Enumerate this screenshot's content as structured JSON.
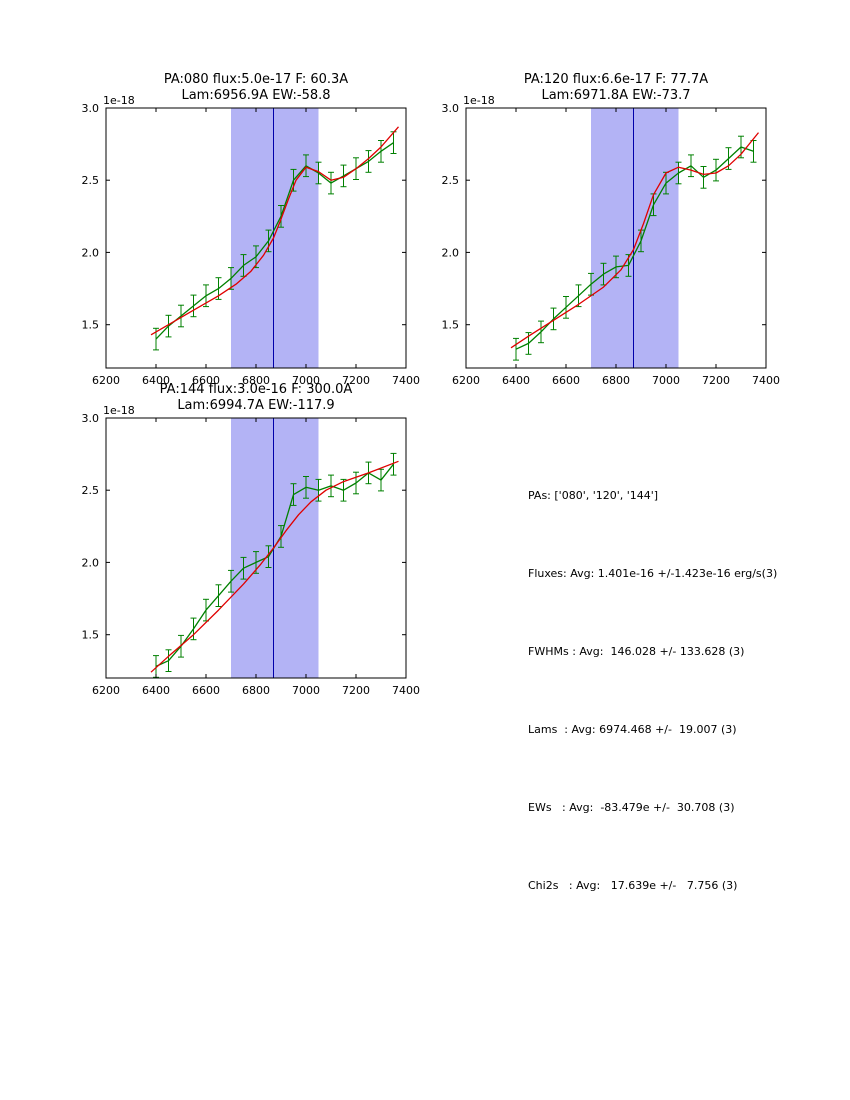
{
  "figure": {
    "background": "#ffffff",
    "band_color": "#b3b3f5",
    "vline_color": "#0000aa",
    "axis_color": "#000000"
  },
  "stats_panel": {
    "lines": [
      "PAs: ['080', '120', '144']",
      "Fluxes: Avg: 1.401e-16 +/-1.423e-16 erg/s(3)",
      "FWHMs : Avg:  146.028 +/- 133.628 (3)",
      "Lams  : Avg: 6974.468 +/-  19.007 (3)",
      "EWs   : Avg:  -83.479e +/-  30.708 (3)",
      "Chi2s   : Avg:   17.639e +/-   7.756 (3)"
    ]
  },
  "chart_data": [
    {
      "type": "line",
      "title_line1": "PA:080 flux:5.0e-17 F: 60.3A",
      "title_line2": "Lam:6956.9A EW:-58.8",
      "offset_label": "1e-18",
      "xlim": [
        6200,
        7400
      ],
      "ylim": [
        1.2,
        3.0
      ],
      "xticks": [
        6200,
        6400,
        6600,
        6800,
        7000,
        7200,
        7400
      ],
      "yticks": [
        "1.5",
        "2.0",
        "2.5",
        "3.0"
      ],
      "band": {
        "x0": 6700,
        "x1": 7050
      },
      "vline_x": 6870,
      "series": [
        {
          "name": "spectrum",
          "color": "#008000",
          "yerr": 0.075,
          "x": [
            6400,
            6450,
            6500,
            6550,
            6600,
            6650,
            6700,
            6750,
            6800,
            6850,
            6900,
            6950,
            7000,
            7050,
            7100,
            7150,
            7200,
            7250,
            7300,
            7350
          ],
          "y": [
            1.4,
            1.49,
            1.56,
            1.63,
            1.7,
            1.75,
            1.82,
            1.91,
            1.97,
            2.08,
            2.25,
            2.5,
            2.6,
            2.55,
            2.48,
            2.53,
            2.58,
            2.63,
            2.7,
            2.76
          ]
        },
        {
          "name": "fit",
          "color": "#e00000",
          "x": [
            6380,
            6450,
            6550,
            6650,
            6720,
            6780,
            6830,
            6870,
            6900,
            6930,
            6960,
            7000,
            7050,
            7100,
            7150,
            7200,
            7250,
            7300,
            7370
          ],
          "y": [
            1.43,
            1.5,
            1.6,
            1.7,
            1.78,
            1.87,
            1.98,
            2.1,
            2.23,
            2.37,
            2.5,
            2.59,
            2.56,
            2.5,
            2.52,
            2.58,
            2.65,
            2.73,
            2.87
          ]
        }
      ]
    },
    {
      "type": "line",
      "title_line1": "PA:120 flux:6.6e-17 F: 77.7A",
      "title_line2": "Lam:6971.8A EW:-73.7",
      "offset_label": "1e-18",
      "xlim": [
        6200,
        7400
      ],
      "ylim": [
        1.2,
        3.0
      ],
      "xticks": [
        6200,
        6400,
        6600,
        6800,
        7000,
        7200,
        7400
      ],
      "yticks": [
        "1.5",
        "2.0",
        "2.5",
        "3.0"
      ],
      "band": {
        "x0": 6700,
        "x1": 7050
      },
      "vline_x": 6870,
      "series": [
        {
          "name": "spectrum",
          "color": "#008000",
          "yerr": 0.075,
          "x": [
            6400,
            6450,
            6500,
            6550,
            6600,
            6650,
            6700,
            6750,
            6800,
            6850,
            6900,
            6950,
            7000,
            7050,
            7100,
            7150,
            7200,
            7250,
            7300,
            7350
          ],
          "y": [
            1.33,
            1.37,
            1.45,
            1.54,
            1.62,
            1.7,
            1.78,
            1.85,
            1.9,
            1.91,
            2.08,
            2.33,
            2.48,
            2.55,
            2.6,
            2.52,
            2.57,
            2.65,
            2.73,
            2.7
          ]
        },
        {
          "name": "fit",
          "color": "#e00000",
          "x": [
            6380,
            6450,
            6550,
            6650,
            6750,
            6820,
            6870,
            6910,
            6950,
            7000,
            7050,
            7100,
            7150,
            7200,
            7250,
            7300,
            7370
          ],
          "y": [
            1.34,
            1.42,
            1.53,
            1.64,
            1.76,
            1.88,
            2.02,
            2.2,
            2.4,
            2.55,
            2.59,
            2.57,
            2.54,
            2.55,
            2.6,
            2.68,
            2.83
          ]
        }
      ]
    },
    {
      "type": "line",
      "title_line1": "PA:144 flux:3.0e-16 F: 300.0A",
      "title_line2": "Lam:6994.7A EW:-117.9",
      "offset_label": "1e-18",
      "xlim": [
        6200,
        7400
      ],
      "ylim": [
        1.2,
        3.0
      ],
      "xticks": [
        6200,
        6400,
        6600,
        6800,
        7000,
        7200,
        7400
      ],
      "yticks": [
        "1.5",
        "2.0",
        "2.5",
        "3.0"
      ],
      "band": {
        "x0": 6700,
        "x1": 7050
      },
      "vline_x": 6870,
      "series": [
        {
          "name": "spectrum",
          "color": "#008000",
          "yerr": 0.075,
          "x": [
            6400,
            6450,
            6500,
            6550,
            6600,
            6650,
            6700,
            6750,
            6800,
            6850,
            6900,
            6950,
            7000,
            7050,
            7100,
            7150,
            7200,
            7250,
            7300,
            7350
          ],
          "y": [
            1.28,
            1.32,
            1.42,
            1.54,
            1.67,
            1.77,
            1.87,
            1.96,
            2.0,
            2.04,
            2.18,
            2.47,
            2.52,
            2.5,
            2.53,
            2.5,
            2.55,
            2.62,
            2.57,
            2.68
          ]
        },
        {
          "name": "fit",
          "color": "#e00000",
          "x": [
            6380,
            6450,
            6550,
            6650,
            6750,
            6820,
            6870,
            6920,
            6970,
            7020,
            7080,
            7150,
            7250,
            7370
          ],
          "y": [
            1.24,
            1.35,
            1.5,
            1.67,
            1.85,
            1.99,
            2.1,
            2.22,
            2.33,
            2.42,
            2.5,
            2.56,
            2.62,
            2.7
          ]
        }
      ]
    }
  ]
}
